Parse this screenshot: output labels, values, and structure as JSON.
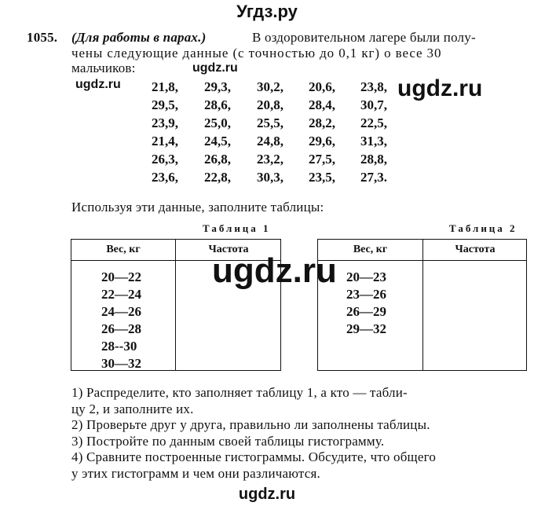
{
  "site_title": "Угдз.ру",
  "watermark": "ugdz.ru",
  "problem": {
    "number": "1055.",
    "italic_note": "(Для работы в парах.)",
    "line1_rest": "В оздоровительном лагере были полу-",
    "line2": "чены следующие данные (с точностью до 0,1 кг) о весе 30",
    "line3": "мальчиков:",
    "data_rows": [
      [
        "21,8,",
        "29,3,",
        "30,2,",
        "20,6,",
        "23,8,"
      ],
      [
        "29,5,",
        "28,6,",
        "20,8,",
        "28,4,",
        "30,7,"
      ],
      [
        "23,9,",
        "25,0,",
        "25,5,",
        "28,2,",
        "22,5,"
      ],
      [
        "21,4,",
        "24,5,",
        "24,8,",
        "29,6,",
        "31,3,"
      ],
      [
        "26,3,",
        "26,8,",
        "23,2,",
        "27,5,",
        "28,8,"
      ],
      [
        "23,6,",
        "22,8,",
        "30,3,",
        "23,5,",
        "27,3."
      ]
    ],
    "instruction": "Используя эти данные, заполните таблицы:",
    "table1": {
      "caption": "Таблица 1",
      "headers": [
        "Вес, кг",
        "Частота"
      ],
      "ranges": [
        "20—22",
        "22—24",
        "24—26",
        "26—28",
        "28--30",
        "30—32"
      ]
    },
    "table2": {
      "caption": "Таблица 2",
      "headers": [
        "Вес, кг",
        "Частота"
      ],
      "ranges": [
        "20—23",
        "23—26",
        "26—29",
        "29—32"
      ]
    },
    "tasks": [
      "1) Распределите, кто заполняет таблицу 1, а кто — табли-",
      "цу 2, и заполните их.",
      "2) Проверьте друг у друга, правильно ли заполнены таблицы.",
      "3) Постройте по данным своей таблицы гистограмму.",
      "4) Сравните построенные гистограммы. Обсудите, что общего",
      "у этих гистограмм и чем они различаются."
    ]
  }
}
